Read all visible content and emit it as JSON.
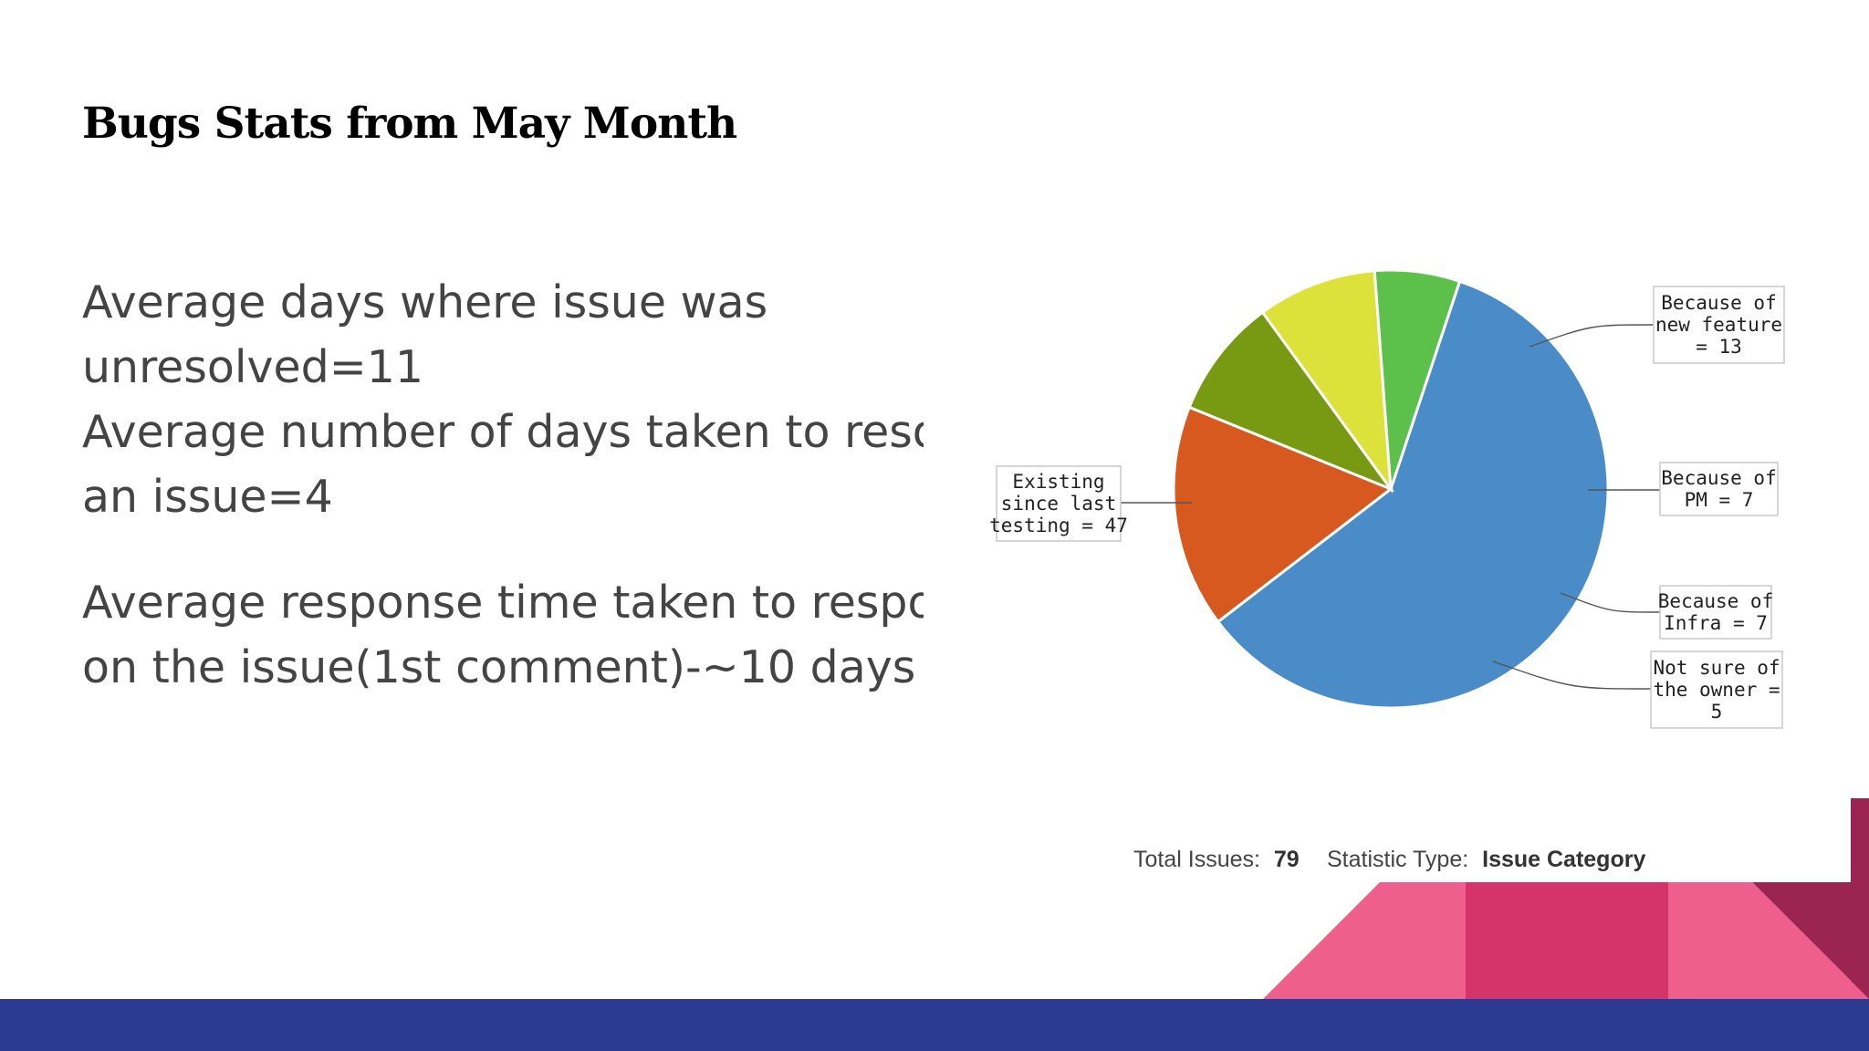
{
  "slide": {
    "title": "Bugs Stats from May Month",
    "body": {
      "line1": "Average days where issue was",
      "line2": "unresolved=11",
      "line3": "Average number of days taken to resolve",
      "line4": "an issue=4",
      "line5": "Average response time taken to response",
      "line6": "on the  issue(1st comment)-~10 days"
    }
  },
  "chart_data": {
    "type": "pie",
    "slices": [
      {
        "label_lines": [
          "Existing",
          "since last",
          "testing = 47"
        ],
        "value": 47,
        "color": "#4a8cc8"
      },
      {
        "label_lines": [
          "Because of",
          "new feature",
          "= 13"
        ],
        "value": 13,
        "color": "#d8591f"
      },
      {
        "label_lines": [
          "Because of",
          "PM = 7"
        ],
        "value": 7,
        "color": "#789a12"
      },
      {
        "label_lines": [
          "Because of",
          "Infra = 7"
        ],
        "value": 7,
        "color": "#dde23b"
      },
      {
        "label_lines": [
          "Not sure of",
          "the owner =",
          "5"
        ],
        "value": 5,
        "color": "#5cc04a"
      }
    ],
    "footer": {
      "total_label": "Total Issues:",
      "total_value": "79",
      "type_label": "Statistic Type:",
      "type_value": "Issue Category"
    }
  },
  "theme": {
    "bottom_bar": "#2b3990",
    "pink_light": "#ef5f8d",
    "pink_dark": "#d4346a",
    "maroon": "#9b2450"
  }
}
